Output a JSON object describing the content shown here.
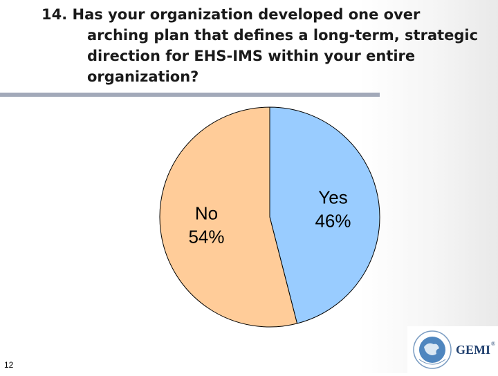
{
  "slide": {
    "title_number": "14.",
    "title_lines": [
      "Has your organization developed one over",
      "arching plan that defines a long-term, strategic",
      "direction for EHS-IMS within your entire",
      "organization?"
    ],
    "page_number": "12",
    "logo_text": "GEMI",
    "logo_mark": "®",
    "colors": {
      "yes_slice": "#99ccff",
      "no_slice": "#ffcc99",
      "rule": "#a2a9b9"
    }
  },
  "chart_data": {
    "type": "pie",
    "slices": [
      {
        "label": "Yes",
        "value": 46,
        "display": "46%",
        "color": "#99ccff"
      },
      {
        "label": "No",
        "value": 54,
        "display": "54%",
        "color": "#ffcc99"
      }
    ],
    "legend": "none",
    "labels_inside": true
  }
}
